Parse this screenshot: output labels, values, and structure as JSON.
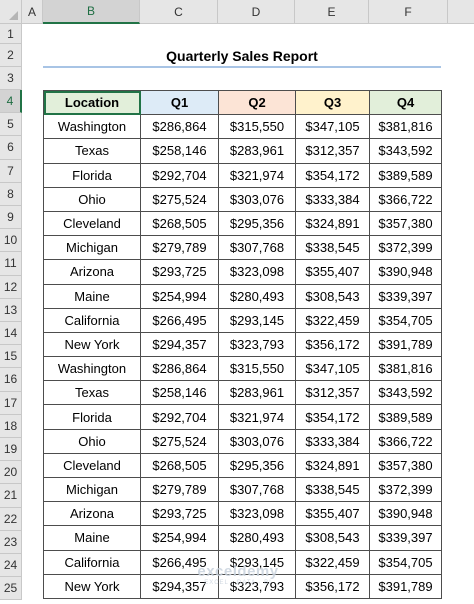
{
  "columns": [
    "A",
    "B",
    "C",
    "D",
    "E",
    "F"
  ],
  "rows": [
    "1",
    "2",
    "3",
    "4",
    "5",
    "6",
    "7",
    "8",
    "9",
    "10",
    "11",
    "12",
    "13",
    "14",
    "15",
    "16",
    "17",
    "18",
    "19",
    "20",
    "21",
    "22",
    "23",
    "24",
    "25"
  ],
  "title": "Quarterly Sales Report",
  "table": {
    "headers": [
      "Location",
      "Q1",
      "Q2",
      "Q3",
      "Q4"
    ],
    "header_colors": [
      "#e2efda",
      "#ddebf7",
      "#fce4d6",
      "#fff2cc",
      "#e2efda"
    ],
    "rows": [
      [
        "Washington",
        "$286,864",
        "$315,550",
        "$347,105",
        "$381,816"
      ],
      [
        "Texas",
        "$258,146",
        "$283,961",
        "$312,357",
        "$343,592"
      ],
      [
        "Florida",
        "$292,704",
        "$321,974",
        "$354,172",
        "$389,589"
      ],
      [
        "Ohio",
        "$275,524",
        "$303,076",
        "$333,384",
        "$366,722"
      ],
      [
        "Cleveland",
        "$268,505",
        "$295,356",
        "$324,891",
        "$357,380"
      ],
      [
        "Michigan",
        "$279,789",
        "$307,768",
        "$338,545",
        "$372,399"
      ],
      [
        "Arizona",
        "$293,725",
        "$323,098",
        "$355,407",
        "$390,948"
      ],
      [
        "Maine",
        "$254,994",
        "$280,493",
        "$308,543",
        "$339,397"
      ],
      [
        "California",
        "$266,495",
        "$293,145",
        "$322,459",
        "$354,705"
      ],
      [
        "New York",
        "$294,357",
        "$323,793",
        "$356,172",
        "$391,789"
      ],
      [
        "Washington",
        "$286,864",
        "$315,550",
        "$347,105",
        "$381,816"
      ],
      [
        "Texas",
        "$258,146",
        "$283,961",
        "$312,357",
        "$343,592"
      ],
      [
        "Florida",
        "$292,704",
        "$321,974",
        "$354,172",
        "$389,589"
      ],
      [
        "Ohio",
        "$275,524",
        "$303,076",
        "$333,384",
        "$366,722"
      ],
      [
        "Cleveland",
        "$268,505",
        "$295,356",
        "$324,891",
        "$357,380"
      ],
      [
        "Michigan",
        "$279,789",
        "$307,768",
        "$338,545",
        "$372,399"
      ],
      [
        "Arizona",
        "$293,725",
        "$323,098",
        "$355,407",
        "$390,948"
      ],
      [
        "Maine",
        "$254,994",
        "$280,493",
        "$308,543",
        "$339,397"
      ],
      [
        "California",
        "$266,495",
        "$293,145",
        "$322,459",
        "$354,705"
      ],
      [
        "New York",
        "$294,357",
        "$323,793",
        "$356,172",
        "$391,789"
      ]
    ]
  },
  "watermark": {
    "main": "exceldemy",
    "sub": "EXCEL · DATA · BI"
  },
  "selected_cell": "B4",
  "accent_color": "#217346",
  "icons": {
    "corner": "select-all-triangle-icon"
  }
}
